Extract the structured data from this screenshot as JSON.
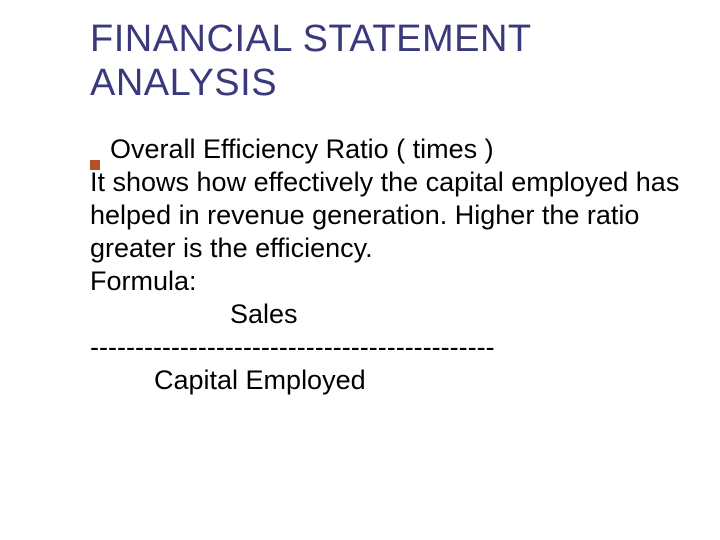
{
  "title": "FINANCIAL STATEMENT ANALYSIS",
  "bullet_heading": "Overall Efficiency Ratio ( times )",
  "description": "It shows how effectively the capital employed has helped in revenue generation. Higher the ratio greater is the efficiency.",
  "formula_label": "Formula:",
  "formula_numerator": "Sales",
  "formula_divider": "---------------------------------------------",
  "formula_denominator": "Capital Employed",
  "colors": {
    "title_color": "#39397b",
    "text_color": "#000000",
    "bullet_color": "#b25028",
    "background": "#ffffff"
  },
  "typography": {
    "title_fontsize": 38,
    "body_fontsize": 27,
    "font_family": "Verdana"
  }
}
